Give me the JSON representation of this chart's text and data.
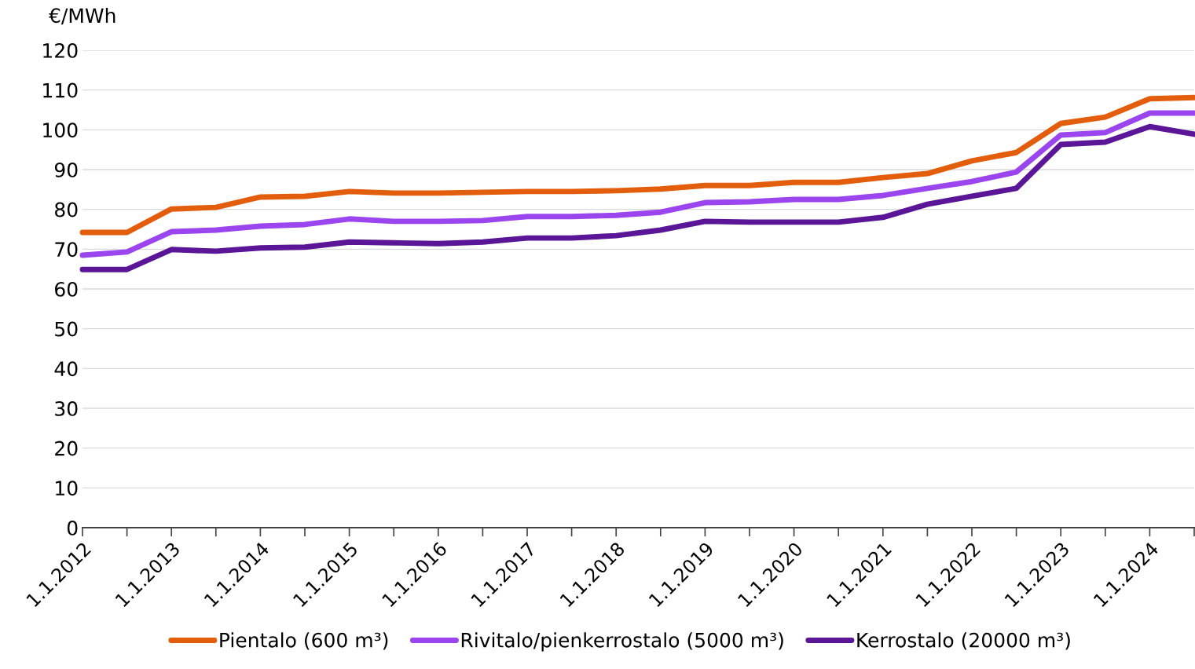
{
  "chart_data": {
    "type": "line",
    "ylabel": "€/MWh",
    "categories": [
      "1.1.2012",
      null,
      "1.1.2013",
      null,
      "1.1.2014",
      null,
      "1.1.2015",
      null,
      "1.1.2016",
      null,
      "1.1.2017",
      null,
      "1.1.2018",
      null,
      "1.1.2019",
      null,
      "1.1.2020",
      null,
      "1.1.2021",
      null,
      "1.1.2022",
      null,
      "1.1.2023",
      null,
      "1.1.2024",
      null
    ],
    "series": [
      {
        "name": "Pientalo (600 m³)",
        "color": "#e35e0c",
        "values": [
          74.2,
          74.2,
          80.1,
          80.5,
          83.1,
          83.3,
          84.5,
          84.1,
          84.1,
          84.3,
          84.5,
          84.5,
          84.7,
          85.1,
          86.0,
          86.0,
          86.8,
          86.8,
          88.0,
          89.0,
          92.2,
          94.3,
          101.6,
          103.2,
          107.8,
          108.1
        ]
      },
      {
        "name": "Rivitalo/pienkerrostalo (5000 m³)",
        "color": "#9b45ee",
        "values": [
          68.5,
          69.3,
          74.4,
          74.8,
          75.8,
          76.2,
          77.6,
          77.0,
          77.0,
          77.2,
          78.2,
          78.2,
          78.5,
          79.3,
          81.7,
          81.9,
          82.5,
          82.5,
          83.5,
          85.3,
          87.0,
          89.4,
          98.7,
          99.3,
          104.2,
          104.2
        ]
      },
      {
        "name": "Kerrostalo (20000 m³)",
        "color": "#5a1697",
        "values": [
          64.9,
          64.9,
          69.9,
          69.5,
          70.3,
          70.5,
          71.8,
          71.6,
          71.4,
          71.8,
          72.8,
          72.8,
          73.4,
          74.8,
          77.0,
          76.8,
          76.8,
          76.8,
          78.0,
          81.3,
          83.3,
          85.3,
          96.3,
          96.9,
          100.8,
          98.9
        ]
      }
    ],
    "ylim": [
      0,
      120
    ],
    "yticks": [
      0,
      10,
      20,
      30,
      40,
      50,
      60,
      70,
      80,
      90,
      100,
      110,
      120
    ],
    "grid": "y",
    "legend": "bottom",
    "marker": "none",
    "line_style": "solid"
  }
}
